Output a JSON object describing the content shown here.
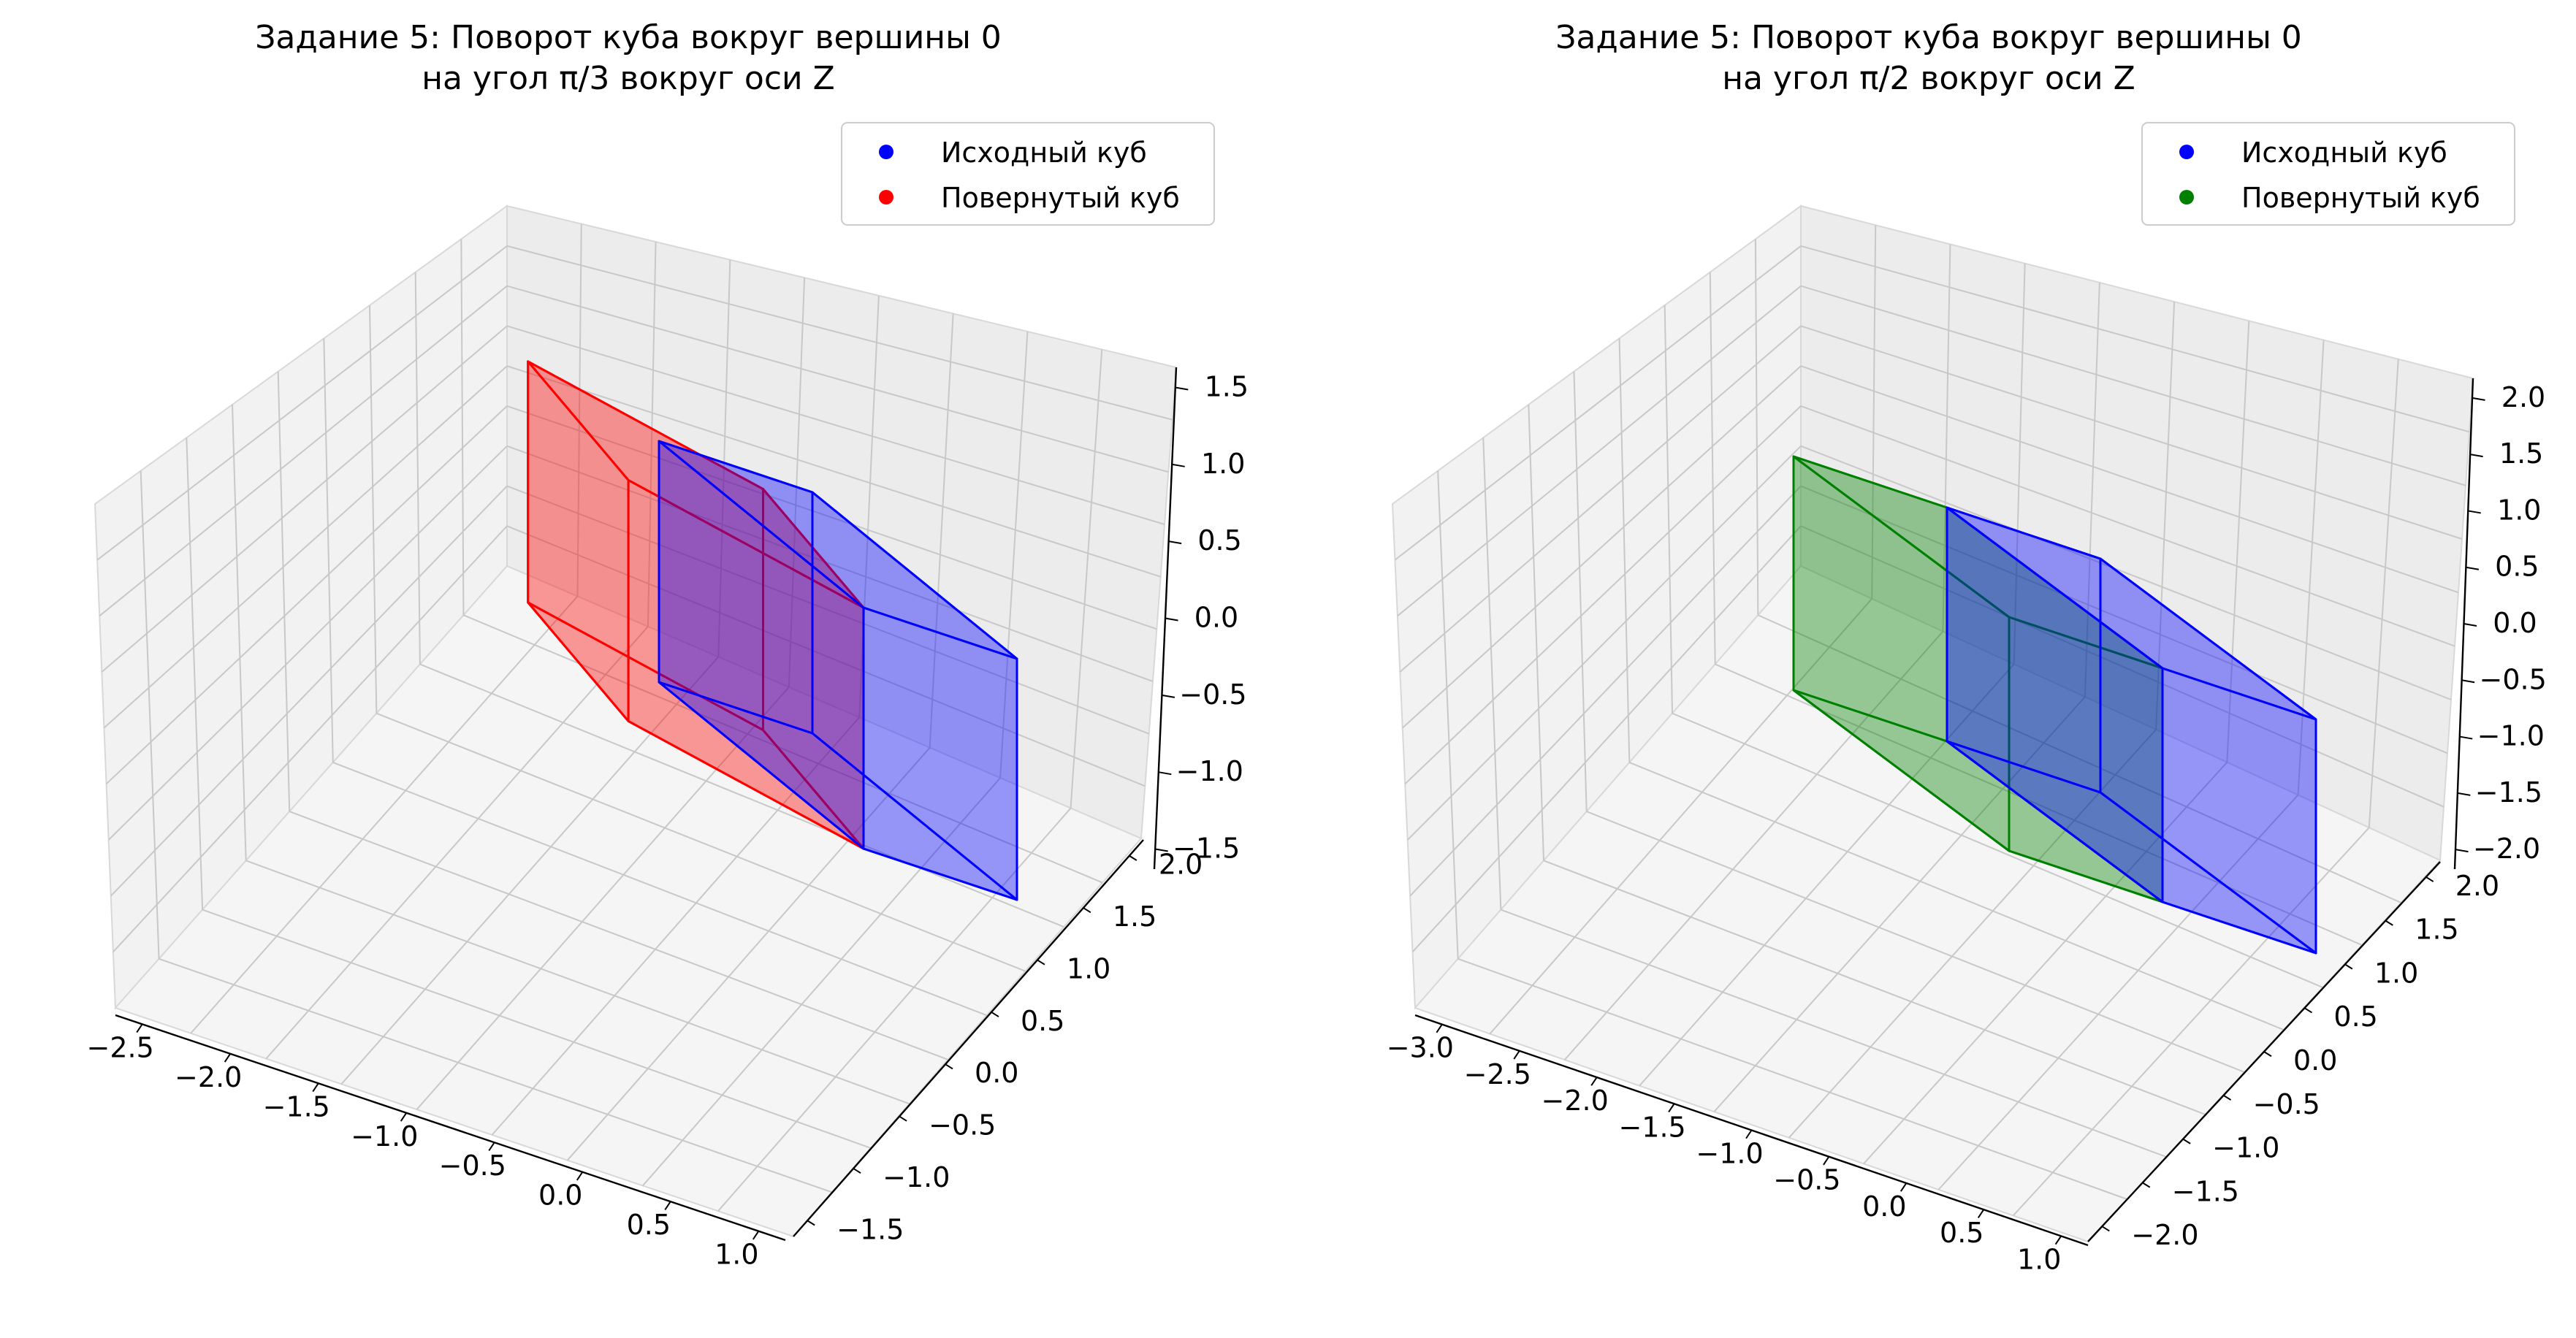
{
  "chart_data": [
    {
      "type": "3d-polyhedra",
      "title_line1": "Задание 5: Поворот куба вокруг вершины 0",
      "title_line2": "на угол π/3 вокруг оси Z",
      "legend": {
        "placement": "top-right",
        "entries": [
          {
            "label": "Исходный куб",
            "color": "#0000ff"
          },
          {
            "label": "Повернутый куб",
            "color": "#ff0000"
          }
        ]
      },
      "grid": true,
      "xticks": [
        "−2.5",
        "−2.0",
        "−1.5",
        "−1.0",
        "−0.5",
        "0.0",
        "0.5",
        "1.0"
      ],
      "yticks": [
        "−1.5",
        "−1.0",
        "−0.5",
        "0.0",
        "0.5",
        "1.0",
        "1.5",
        "2.0"
      ],
      "zticks": [
        "−1.5",
        "−1.0",
        "−0.5",
        "0.0",
        "0.5",
        "1.0",
        "1.5"
      ],
      "series": [
        {
          "name": "Исходный куб",
          "color": "#0000ff",
          "face_alpha": 0.5,
          "vertices": [
            [
              0,
              0,
              0
            ],
            [
              1,
              0,
              0
            ],
            [
              1,
              1,
              0
            ],
            [
              0,
              1,
              0
            ],
            [
              0,
              0,
              1
            ],
            [
              1,
              0,
              1
            ],
            [
              1,
              1,
              1
            ],
            [
              0,
              1,
              1
            ]
          ]
        },
        {
          "name": "Повернутый куб",
          "color": "#ff0000",
          "face_alpha": 0.5,
          "vertices": [
            [
              0,
              0,
              0
            ],
            [
              0.5,
              0.866,
              0
            ],
            [
              -0.366,
              1.366,
              0
            ],
            [
              -0.866,
              0.5,
              0
            ],
            [
              0,
              0,
              1
            ],
            [
              0.5,
              0.866,
              1
            ],
            [
              -0.366,
              1.366,
              1
            ],
            [
              -0.866,
              0.5,
              1
            ]
          ]
        }
      ]
    },
    {
      "type": "3d-polyhedra",
      "title_line1": "Задание 5: Поворот куба вокруг вершины 0",
      "title_line2": "на угол π/2 вокруг оси Z",
      "legend": {
        "placement": "top-right",
        "entries": [
          {
            "label": "Исходный куб",
            "color": "#0000ff"
          },
          {
            "label": "Повернутый куб",
            "color": "#008000"
          }
        ]
      },
      "grid": true,
      "xticks": [
        "−3.0",
        "−2.5",
        "−2.0",
        "−1.5",
        "−1.0",
        "−0.5",
        "0.0",
        "0.5",
        "1.0"
      ],
      "yticks": [
        "−2.0",
        "−1.5",
        "−1.0",
        "−0.5",
        "0.0",
        "0.5",
        "1.0",
        "1.5",
        "2.0"
      ],
      "zticks": [
        "−2.0",
        "−1.5",
        "−1.0",
        "−0.5",
        "0.0",
        "0.5",
        "1.0",
        "1.5",
        "2.0"
      ],
      "series": [
        {
          "name": "Исходный куб",
          "color": "#0000ff",
          "face_alpha": 0.5,
          "vertices": [
            [
              0,
              0,
              0
            ],
            [
              1,
              0,
              0
            ],
            [
              1,
              1,
              0
            ],
            [
              0,
              1,
              0
            ],
            [
              0,
              0,
              1
            ],
            [
              1,
              0,
              1
            ],
            [
              1,
              1,
              1
            ],
            [
              0,
              1,
              1
            ]
          ]
        },
        {
          "name": "Повернутый куб",
          "color": "#008000",
          "face_alpha": 0.5,
          "vertices": [
            [
              0,
              0,
              0
            ],
            [
              0,
              1,
              0
            ],
            [
              -1,
              1,
              0
            ],
            [
              -1,
              0,
              0
            ],
            [
              0,
              0,
              1
            ],
            [
              0,
              1,
              1
            ],
            [
              -1,
              1,
              1
            ],
            [
              -1,
              0,
              1
            ]
          ]
        }
      ]
    }
  ]
}
